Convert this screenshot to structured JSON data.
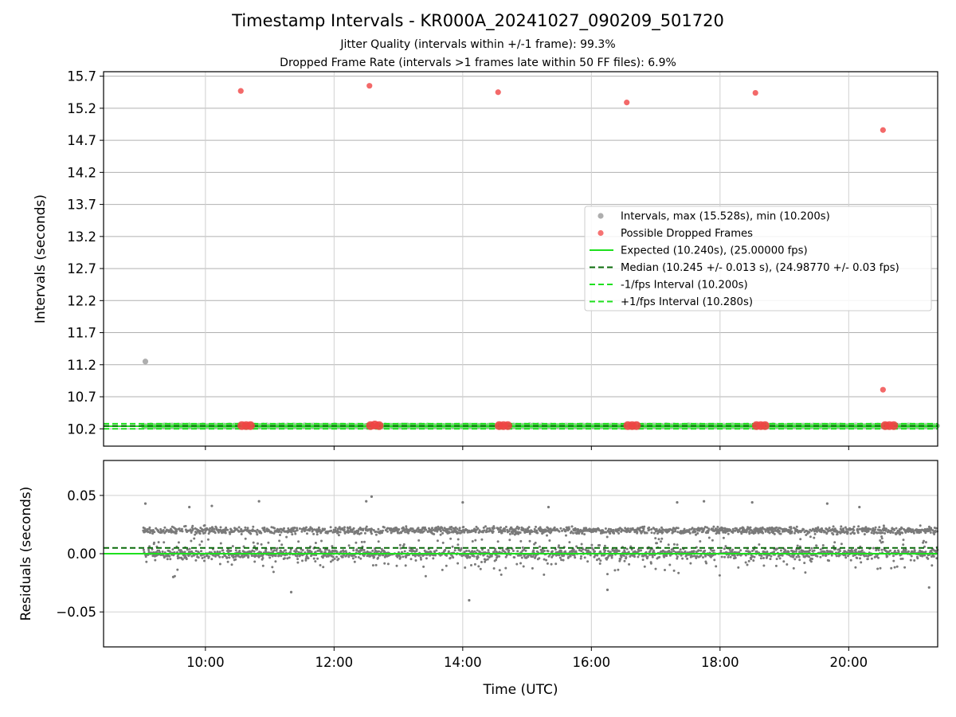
{
  "chart_data": [
    {
      "type": "scatter",
      "title": "Timestamp Intervals - KR000A_20241027_090209_501720",
      "subtitle_lines": [
        "Jitter Quality (intervals within +/-1 frame): 99.3%",
        "Dropped Frame Rate (intervals >1 frames late within 50 FF files): 6.9%"
      ],
      "xlabel": "",
      "ylabel": "Intervals (seconds)",
      "xlim": [
        "08:25",
        "21:23"
      ],
      "ylim": [
        9.93,
        15.77
      ],
      "yticks": [
        "10.2",
        "10.7",
        "11.2",
        "11.7",
        "12.2",
        "12.7",
        "13.2",
        "13.7",
        "14.2",
        "14.7",
        "15.2",
        "15.7"
      ],
      "grid": true,
      "legend_position": "center-right",
      "legend": [
        {
          "label": "Intervals, max (15.528s), min (10.200s)",
          "kind": "marker",
          "color": "#a0a0a0"
        },
        {
          "label": "Possible Dropped Frames",
          "kind": "marker",
          "color": "#f45a5a"
        },
        {
          "label": "Expected (10.240s), (25.00000 fps)",
          "kind": "line",
          "color": "#1ee01e"
        },
        {
          "label": "Median (10.245 +/- 0.013 s), (24.98770 +/- 0.03 fps)",
          "kind": "dashed",
          "color": "#0a6b0a"
        },
        {
          "label": "-1/fps Interval (10.200s)",
          "kind": "dashed",
          "color": "#1ee01e"
        },
        {
          "label": "+1/fps Interval (10.280s)",
          "kind": "dashed",
          "color": "#1ee01e"
        }
      ],
      "reference_lines": {
        "expected": 10.24,
        "median": 10.245,
        "minus_one_frame": 10.2,
        "plus_one_frame": 10.28
      },
      "series": [
        {
          "name": "Intervals, max (15.528s), min (10.200s)",
          "points": [
            {
              "x": "09:04",
              "y": 11.25
            },
            {
              "x": "09:02",
              "y": 10.245
            },
            {
              "x": "21:23",
              "y": 10.245
            }
          ]
        },
        {
          "name": "Possible Dropped Frames",
          "points": [
            {
              "x": "10:33",
              "y": 15.47
            },
            {
              "x": "12:33",
              "y": 15.55
            },
            {
              "x": "14:33",
              "y": 15.45
            },
            {
              "x": "16:33",
              "y": 15.29
            },
            {
              "x": "18:33",
              "y": 15.44
            },
            {
              "x": "20:32",
              "y": 14.86
            },
            {
              "x": "20:32",
              "y": 10.81
            },
            {
              "x": "10:34",
              "y": 10.25
            },
            {
              "x": "10:38",
              "y": 10.25
            },
            {
              "x": "10:42",
              "y": 10.25
            },
            {
              "x": "12:34",
              "y": 10.25
            },
            {
              "x": "12:38",
              "y": 10.26
            },
            {
              "x": "12:42",
              "y": 10.25
            },
            {
              "x": "14:34",
              "y": 10.25
            },
            {
              "x": "14:38",
              "y": 10.25
            },
            {
              "x": "14:42",
              "y": 10.25
            },
            {
              "x": "16:34",
              "y": 10.25
            },
            {
              "x": "16:38",
              "y": 10.25
            },
            {
              "x": "16:42",
              "y": 10.25
            },
            {
              "x": "18:34",
              "y": 10.25
            },
            {
              "x": "18:38",
              "y": 10.25
            },
            {
              "x": "18:42",
              "y": 10.25
            },
            {
              "x": "20:34",
              "y": 10.25
            },
            {
              "x": "20:38",
              "y": 10.25
            },
            {
              "x": "20:42",
              "y": 10.25
            }
          ]
        }
      ]
    },
    {
      "type": "scatter",
      "xlabel": "Time (UTC)",
      "ylabel": "Residuals (seconds)",
      "xlim": [
        "08:25",
        "21:23"
      ],
      "ylim": [
        -0.08,
        0.08
      ],
      "xticks": [
        "10:00",
        "12:00",
        "14:00",
        "16:00",
        "18:00",
        "20:00"
      ],
      "yticks": [
        "0.05",
        "0.00",
        "−0.05"
      ],
      "grid": true,
      "reference_lines": {
        "expected": 0.0,
        "median": 0.005
      },
      "series": [
        {
          "name": "",
          "color": "#808080",
          "points": [
            {
              "x": "09:04",
              "y": 0.043
            },
            {
              "x": "09:30",
              "y": -0.02
            },
            {
              "x": "09:45",
              "y": 0.04
            },
            {
              "x": "10:06",
              "y": 0.041
            },
            {
              "x": "10:50",
              "y": 0.045
            },
            {
              "x": "11:20",
              "y": -0.033
            },
            {
              "x": "12:30",
              "y": 0.045
            },
            {
              "x": "12:35",
              "y": 0.049
            },
            {
              "x": "14:00",
              "y": 0.044
            },
            {
              "x": "14:06",
              "y": -0.04
            },
            {
              "x": "15:20",
              "y": 0.04
            },
            {
              "x": "16:15",
              "y": -0.031
            },
            {
              "x": "17:20",
              "y": 0.044
            },
            {
              "x": "17:45",
              "y": 0.045
            },
            {
              "x": "18:30",
              "y": 0.044
            },
            {
              "x": "19:40",
              "y": 0.043
            },
            {
              "x": "20:10",
              "y": 0.04
            },
            {
              "x": "21:15",
              "y": -0.029
            }
          ]
        }
      ]
    }
  ]
}
